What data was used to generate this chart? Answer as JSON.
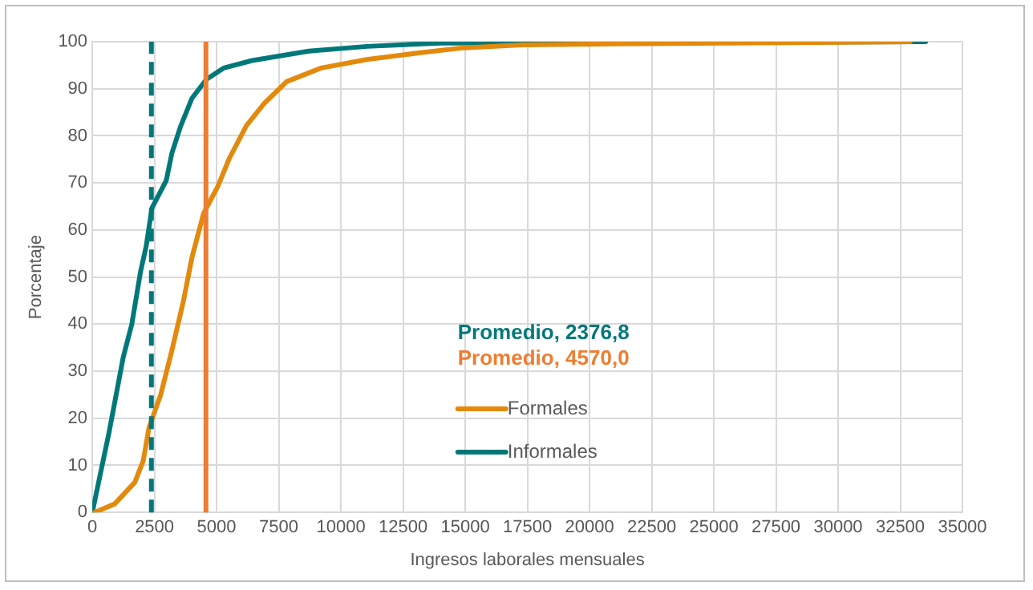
{
  "chart_data": {
    "type": "line",
    "xlabel": "Ingresos laborales mensuales",
    "ylabel": "Porcentaje",
    "xlim": [
      0,
      35000
    ],
    "xticks": [
      0,
      2500,
      5000,
      7500,
      10000,
      12500,
      15000,
      17500,
      20000,
      22500,
      25000,
      27500,
      30000,
      32500,
      35000
    ],
    "ylim": [
      0,
      100
    ],
    "yticks": [
      0,
      10,
      20,
      30,
      40,
      50,
      60,
      70,
      80,
      90,
      100
    ],
    "grid": true,
    "legend": "bottom",
    "marker": "none",
    "line_style": "solid",
    "series": [
      {
        "name": "Formales",
        "color": "#e3890c",
        "x": [
          90,
          900,
          1710,
          2050,
          2280,
          2750,
          3200,
          3665,
          4010,
          4475,
          5050,
          5510,
          6200,
          6900,
          7815,
          9200,
          11040,
          13120,
          14940,
          17270,
          20260,
          32900
        ],
        "values": [
          0,
          1.8,
          6.4,
          11,
          18,
          25,
          34.4,
          44.9,
          54.2,
          63.5,
          69.3,
          75.2,
          82.2,
          86.8,
          91.5,
          94.4,
          96.2,
          97.6,
          98.7,
          99.3,
          99.5,
          100
        ]
      },
      {
        "name": "Informales",
        "color": "#00787a",
        "x": [
          0,
          670,
          1245,
          1590,
          1935,
          2165,
          2400,
          2975,
          3200,
          3550,
          4010,
          4590,
          5280,
          6430,
          8710,
          11050,
          14000,
          33520
        ],
        "values": [
          0,
          16.9,
          33,
          40,
          51,
          56.5,
          64.7,
          70.5,
          76.3,
          82,
          88,
          92,
          94.4,
          96,
          98,
          99,
          99.7,
          100
        ]
      }
    ],
    "ref_lines": [
      {
        "axis": "x",
        "value": 2376.8,
        "label": "Promedio, 2376,8",
        "color": "#00787a",
        "line_style": "dashed"
      },
      {
        "axis": "x",
        "value": 4570.0,
        "label": "Promedio, 4570,0",
        "color": "#ed7d31",
        "line_style": "solid"
      }
    ]
  }
}
